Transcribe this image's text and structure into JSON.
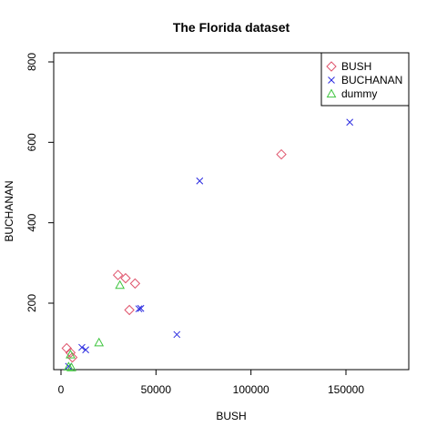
{
  "chart_data": {
    "type": "scatter",
    "title": "The Florida dataset",
    "xlabel": "BUSH",
    "ylabel": "BUCHANAN",
    "xlim": [
      0,
      180000
    ],
    "ylim": [
      40,
      830
    ],
    "x_ticks": [
      0,
      50000,
      100000,
      150000
    ],
    "y_ticks": [
      200,
      400,
      600,
      800
    ],
    "grid": false,
    "legend_position": "top-right",
    "series": [
      {
        "name": "BUSH",
        "marker": "diamond",
        "color": "#DF536B",
        "points": [
          [
            116000,
            570
          ],
          [
            30000,
            270
          ],
          [
            34000,
            262
          ],
          [
            39000,
            249
          ],
          [
            36000,
            183
          ],
          [
            3000,
            88
          ],
          [
            5000,
            77
          ],
          [
            6000,
            65
          ]
        ]
      },
      {
        "name": "BUCHANAN",
        "marker": "cross",
        "color": "#2A2AE0",
        "points": [
          [
            152000,
            650
          ],
          [
            73000,
            504
          ],
          [
            41000,
            186
          ],
          [
            42000,
            187
          ],
          [
            61000,
            122
          ],
          [
            11000,
            90
          ],
          [
            13000,
            84
          ],
          [
            4000,
            43
          ]
        ]
      },
      {
        "name": "dummy",
        "marker": "triangle",
        "color": "#3FC53F",
        "points": [
          [
            31000,
            245
          ],
          [
            20000,
            102
          ],
          [
            5000,
            72
          ],
          [
            4000,
            42
          ],
          [
            5500,
            40
          ]
        ]
      }
    ]
  }
}
